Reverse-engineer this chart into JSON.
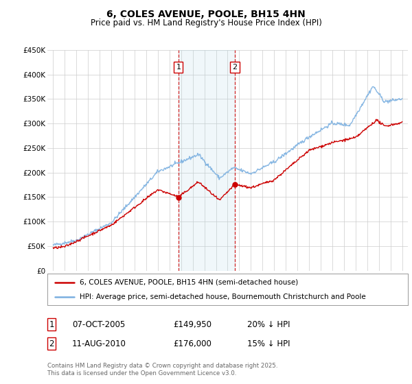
{
  "title": "6, COLES AVENUE, POOLE, BH15 4HN",
  "subtitle": "Price paid vs. HM Land Registry's House Price Index (HPI)",
  "legend_line1": "6, COLES AVENUE, POOLE, BH15 4HN (semi-detached house)",
  "legend_line2": "HPI: Average price, semi-detached house, Bournemouth Christchurch and Poole",
  "footer": "Contains HM Land Registry data © Crown copyright and database right 2025.\nThis data is licensed under the Open Government Licence v3.0.",
  "table": [
    {
      "num": "1",
      "date": "07-OCT-2005",
      "price": "£149,950",
      "hpi": "20% ↓ HPI"
    },
    {
      "num": "2",
      "date": "11-AUG-2010",
      "price": "£176,000",
      "hpi": "15% ↓ HPI"
    }
  ],
  "marker1_x": 2005.77,
  "marker1_y": 149950,
  "marker2_x": 2010.62,
  "marker2_y": 176000,
  "vline1_x": 2005.77,
  "vline2_x": 2010.62,
  "shade_start": 2005.77,
  "shade_end": 2010.62,
  "ylim": [
    0,
    450000
  ],
  "xlim": [
    1994.5,
    2025.5
  ],
  "red_color": "#cc0000",
  "blue_color": "#7aafe0",
  "background_color": "#ffffff",
  "grid_color": "#cccccc",
  "yticks": [
    0,
    50000,
    100000,
    150000,
    200000,
    250000,
    300000,
    350000,
    400000,
    450000
  ],
  "ytick_labels": [
    "£0",
    "£50K",
    "£100K",
    "£150K",
    "£200K",
    "£250K",
    "£300K",
    "£350K",
    "£400K",
    "£450K"
  ],
  "xticks": [
    1995,
    1996,
    1997,
    1998,
    1999,
    2000,
    2001,
    2002,
    2003,
    2004,
    2005,
    2006,
    2007,
    2008,
    2009,
    2010,
    2011,
    2012,
    2013,
    2014,
    2015,
    2016,
    2017,
    2018,
    2019,
    2020,
    2021,
    2022,
    2023,
    2024,
    2025
  ]
}
